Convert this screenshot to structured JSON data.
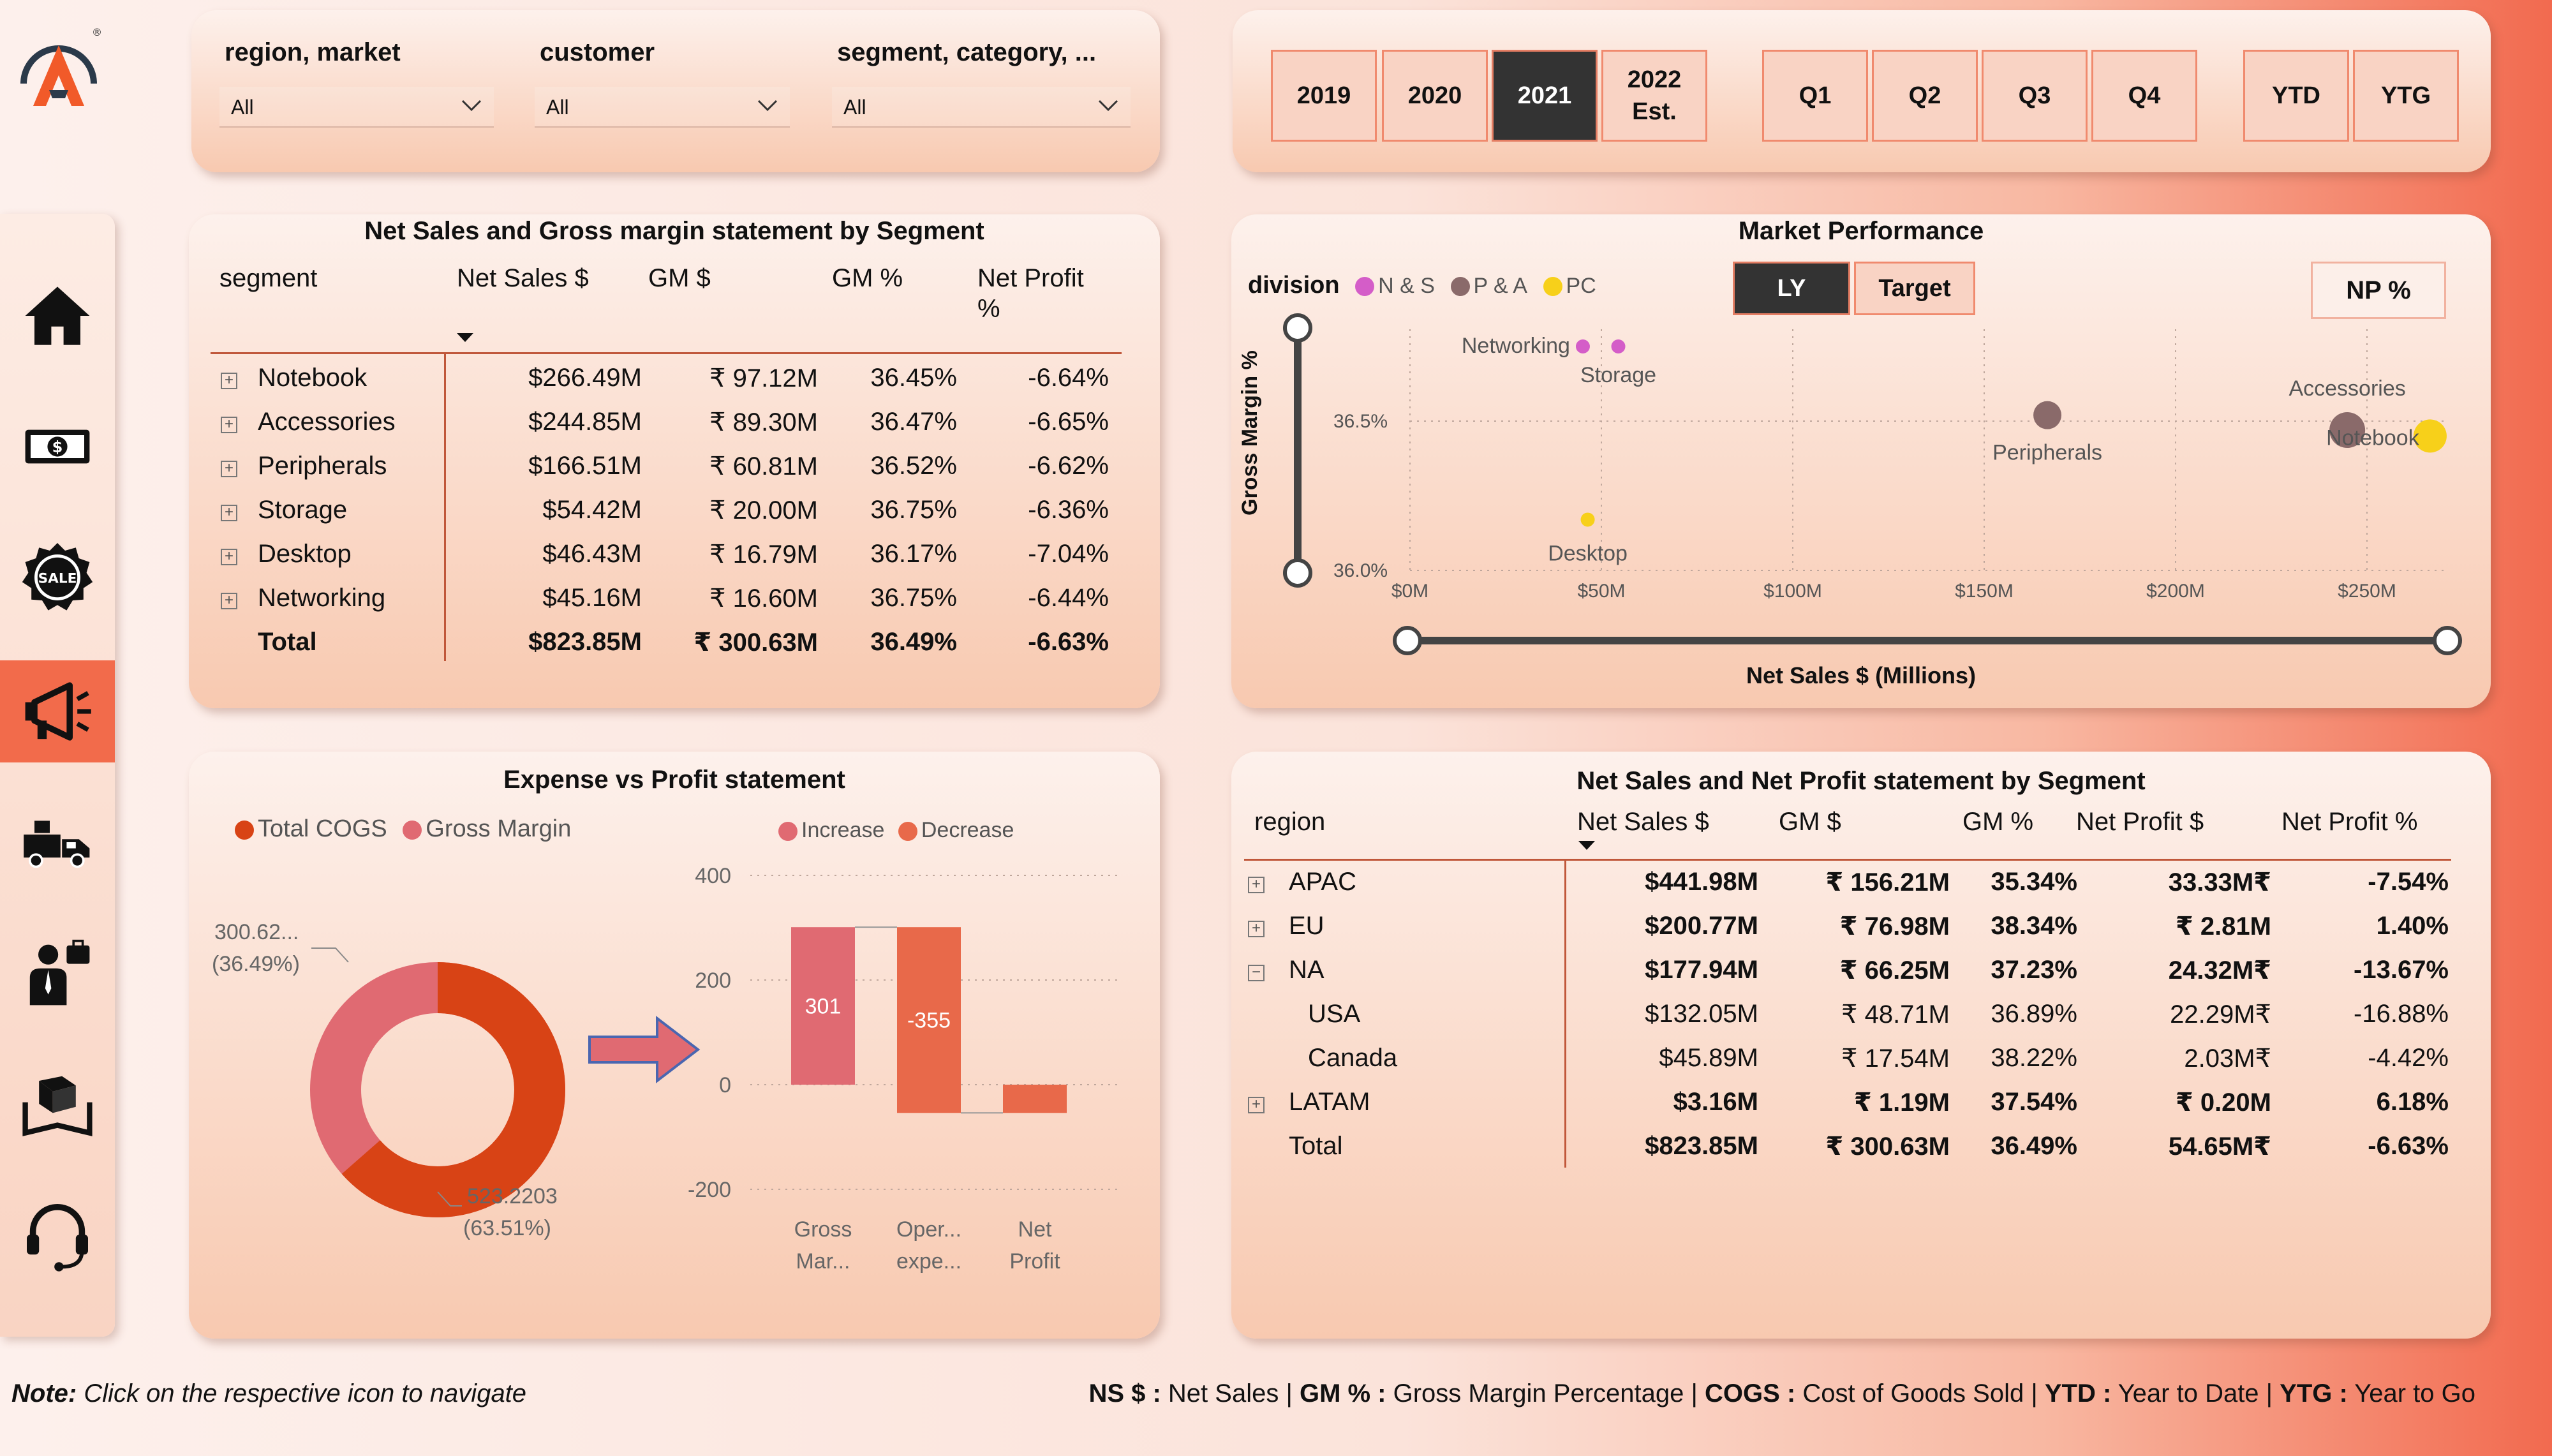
{
  "filters": {
    "region_label": "region, market",
    "region_value": "All",
    "customer_label": "customer",
    "customer_value": "All",
    "segment_label": "segment, category, ...",
    "segment_value": "All"
  },
  "period_buttons": {
    "y2019": "2019",
    "y2020": "2020",
    "y2021": "2021",
    "y2022_line1": "2022",
    "y2022_line2": "Est.",
    "q1": "Q1",
    "q2": "Q2",
    "q3": "Q3",
    "q4": "Q4",
    "ytd": "YTD",
    "ytg": "YTG",
    "active": "2021"
  },
  "nav": {
    "items": [
      "home-icon",
      "money-icon",
      "sale-badge-icon",
      "megaphone-icon",
      "delivery-truck-icon",
      "businessman-icon",
      "supply-box-icon",
      "headset-icon"
    ],
    "active_index": 3
  },
  "segment_table": {
    "title": "Net Sales and Gross margin statement by Segment",
    "headers": [
      "segment",
      "Net Sales $",
      "GM $",
      "GM %",
      "Net Profit",
      "%"
    ],
    "rows": [
      {
        "segment": "Notebook",
        "net_sales": "$266.49M",
        "gm": "₹ 97.12M",
        "gm_pct": "36.45%",
        "np_pct": "-6.64%"
      },
      {
        "segment": "Accessories",
        "net_sales": "$244.85M",
        "gm": "₹ 89.30M",
        "gm_pct": "36.47%",
        "np_pct": "-6.65%"
      },
      {
        "segment": "Peripherals",
        "net_sales": "$166.51M",
        "gm": "₹ 60.81M",
        "gm_pct": "36.52%",
        "np_pct": "-6.62%"
      },
      {
        "segment": "Storage",
        "net_sales": "$54.42M",
        "gm": "₹ 20.00M",
        "gm_pct": "36.75%",
        "np_pct": "-6.36%"
      },
      {
        "segment": "Desktop",
        "net_sales": "$46.43M",
        "gm": "₹ 16.79M",
        "gm_pct": "36.17%",
        "np_pct": "-7.04%"
      },
      {
        "segment": "Networking",
        "net_sales": "$45.16M",
        "gm": "₹ 16.60M",
        "gm_pct": "36.75%",
        "np_pct": "-6.44%"
      }
    ],
    "total": {
      "segment": "Total",
      "net_sales": "$823.85M",
      "gm": "₹ 300.63M",
      "gm_pct": "36.49%",
      "np_pct": "-6.63%"
    }
  },
  "market_performance": {
    "title": "Market Performance",
    "division_label": "division",
    "legend": [
      "N & S",
      "P & A",
      "PC"
    ],
    "toggle_ly": "LY",
    "toggle_target": "Target",
    "np_button": "NP %",
    "y_axis_label": "Gross Margin %",
    "x_axis_label": "Net Sales $ (Millions)",
    "y_ticks": [
      "36.5%",
      "36.0%"
    ],
    "x_ticks": [
      "$0M",
      "$50M",
      "$100M",
      "$150M",
      "$200M",
      "$250M"
    ],
    "point_labels": [
      "Networking",
      "Storage",
      "Peripherals",
      "Accessories",
      "Notebook",
      "Desktop"
    ]
  },
  "expense_profit": {
    "title": "Expense vs Profit statement",
    "donut_legend": [
      "Total COGS",
      "Gross Margin"
    ],
    "donut_gm_label": "300.62...",
    "donut_gm_pct": "(36.49%)",
    "donut_cogs_label": "523.2203",
    "donut_cogs_pct": "(63.51%)",
    "waterfall_legend": [
      "Increase",
      "Decrease"
    ],
    "y_ticks": [
      "400",
      "200",
      "0",
      "-200"
    ],
    "bar_labels": [
      "301",
      "-355"
    ],
    "categories": [
      [
        "Gross",
        "Mar..."
      ],
      [
        "Oper...",
        "expe..."
      ],
      [
        "Net",
        "Profit"
      ]
    ]
  },
  "region_table": {
    "title": "Net Sales and Net Profit statement  by Segment",
    "headers": [
      "region",
      "Net Sales $",
      "GM $",
      "GM %",
      "Net Profit $",
      "Net Profit %"
    ],
    "rows": [
      {
        "region": "APAC",
        "net_sales": "$441.98M",
        "gm": "₹ 156.21M",
        "gm_pct": "35.34%",
        "np": "33.33M₹",
        "np_pct": "-7.54%"
      },
      {
        "region": "EU",
        "net_sales": "$200.77M",
        "gm": "₹ 76.98M",
        "gm_pct": "38.34%",
        "np": "₹ 2.81M",
        "np_pct": "1.40%"
      },
      {
        "region": "NA",
        "net_sales": "$177.94M",
        "gm": "₹ 66.25M",
        "gm_pct": "37.23%",
        "np": "24.32M₹",
        "np_pct": "-13.67%"
      },
      {
        "region": "USA",
        "net_sales": "$132.05M",
        "gm": "₹ 48.71M",
        "gm_pct": "36.89%",
        "np": "22.29M₹",
        "np_pct": "-16.88%"
      },
      {
        "region": "Canada",
        "net_sales": "$45.89M",
        "gm": "₹ 17.54M",
        "gm_pct": "38.22%",
        "np": "2.03M₹",
        "np_pct": "-4.42%"
      },
      {
        "region": "LATAM",
        "net_sales": "$3.16M",
        "gm": "₹ 1.19M",
        "gm_pct": "37.54%",
        "np": "₹ 0.20M",
        "np_pct": "6.18%"
      }
    ],
    "total": {
      "region": "Total",
      "net_sales": "$823.85M",
      "gm": "₹ 300.63M",
      "gm_pct": "36.49%",
      "np": "54.65M₹",
      "np_pct": "-6.63%"
    }
  },
  "footer": {
    "note_bold": "Note:",
    "note_text": " Click on the respective icon to navigate",
    "ns_key": "NS $ :",
    "ns_val": " Net Sales | ",
    "gm_key": "GM % :",
    "gm_val": " Gross Margin Percentage | ",
    "cogs_key": "COGS :",
    "cogs_val": " Cost of Goods Sold | ",
    "ytd_key": "YTD :",
    "ytd_val": " Year to Date | ",
    "ytg_key": "YTG :",
    "ytg_val": " Year to Go"
  },
  "colors": {
    "accent": "#f26b4b",
    "cogs": "#d84315",
    "gross_margin": "#e06a72",
    "increase": "#e06a72",
    "decrease": "#e8694a",
    "ns_division": "#d45dc8",
    "pa_division": "#8a6a6a",
    "pc_division": "#f7d01a"
  }
}
